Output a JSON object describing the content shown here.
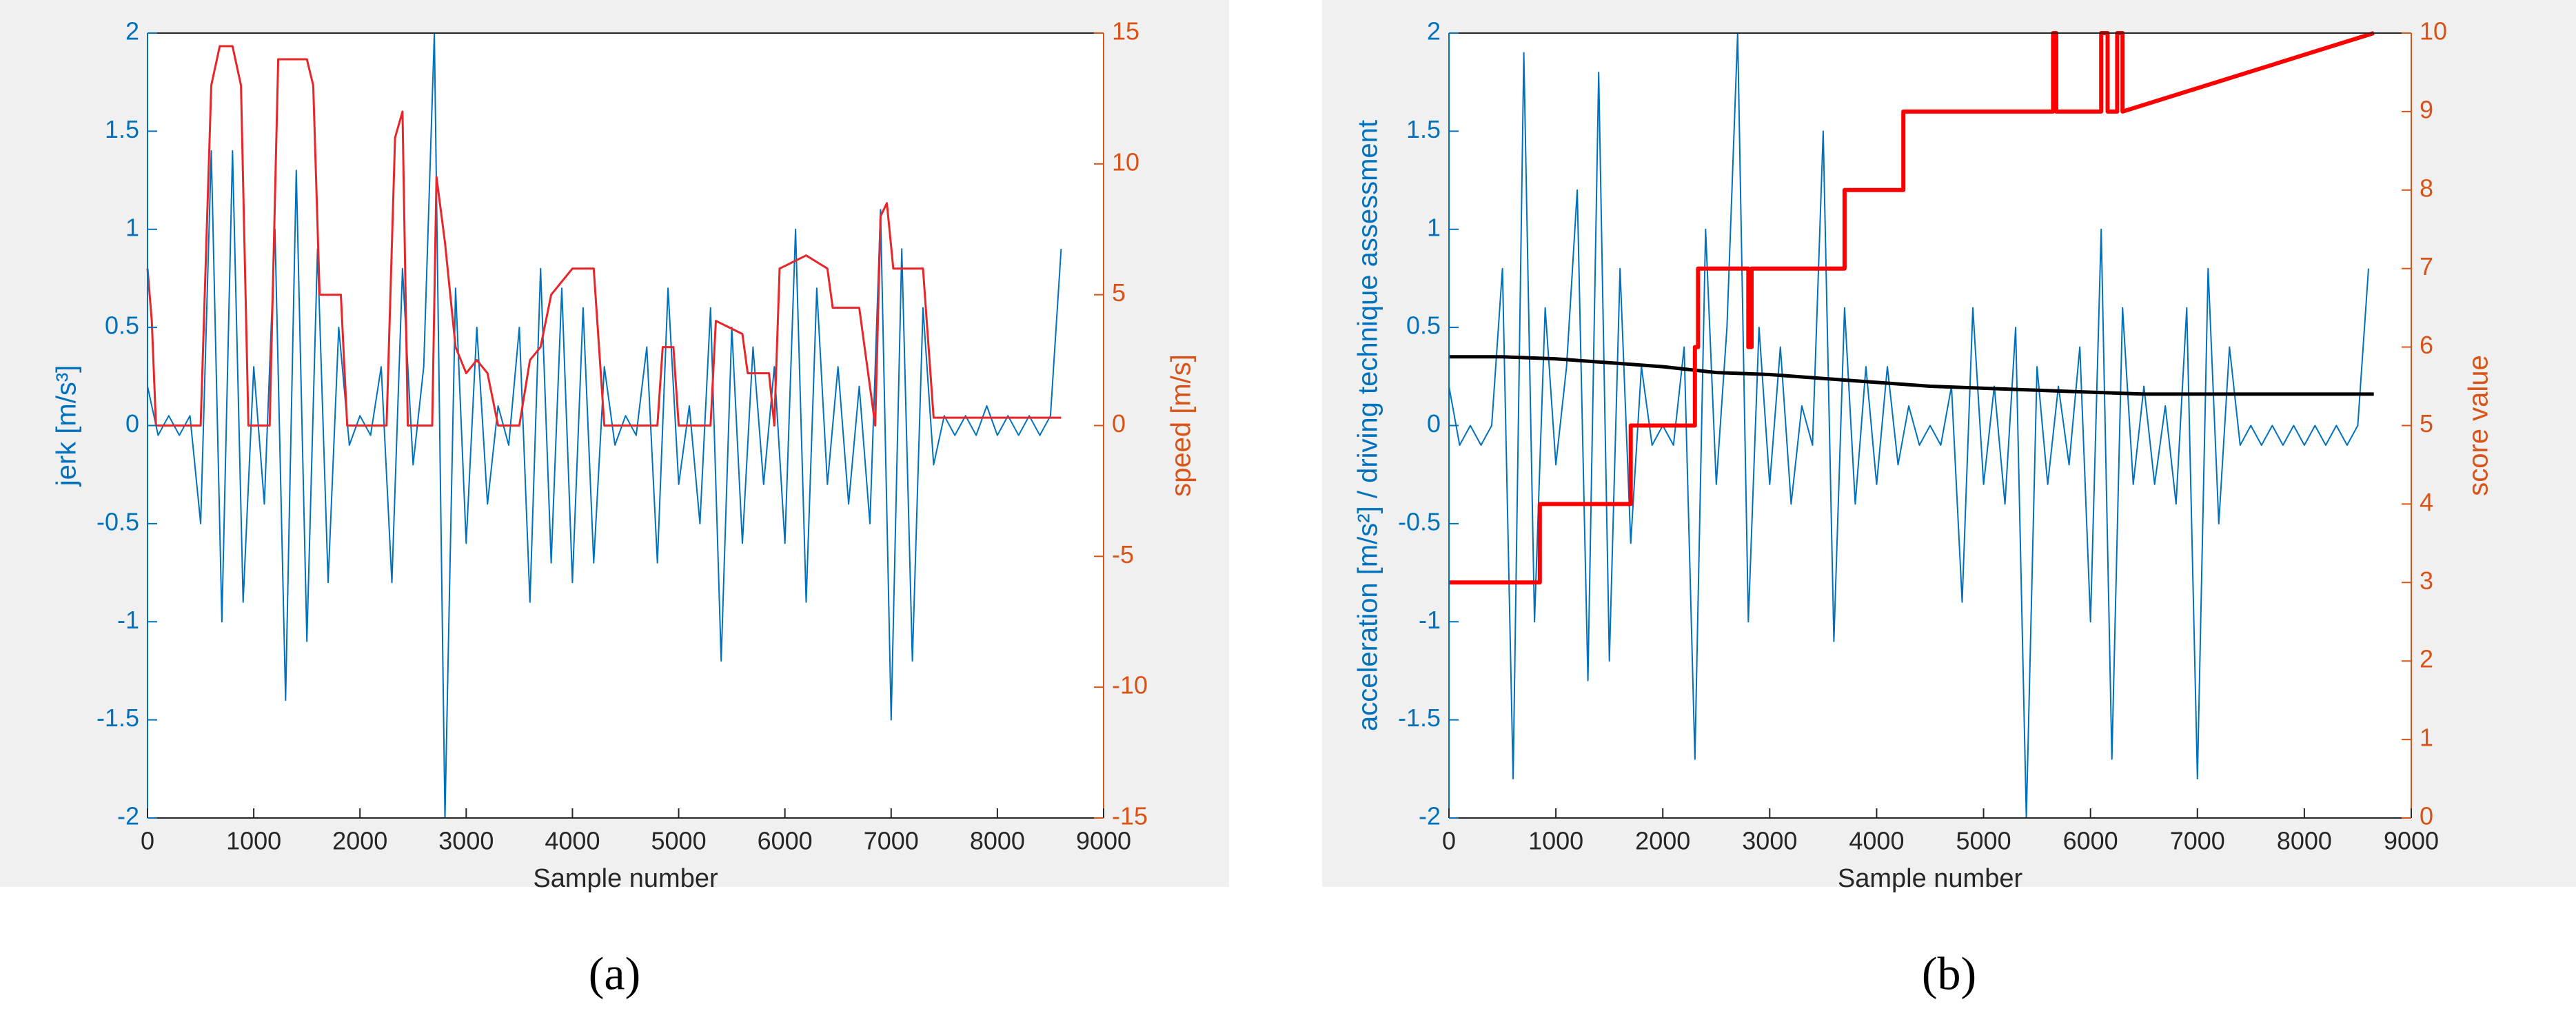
{
  "chart_data": [
    {
      "type": "line",
      "caption": "(a)",
      "xlabel": "Sample number",
      "ylabel": "jerk [m/s³]",
      "y2label": "speed [m/s]",
      "xlim": [
        0,
        9000
      ],
      "xticks": [
        0,
        1000,
        2000,
        3000,
        4000,
        5000,
        6000,
        7000,
        8000,
        9000
      ],
      "ylim": [
        -2,
        2
      ],
      "yticks": [
        -2,
        -1.5,
        -1,
        -0.5,
        0,
        0.5,
        1,
        1.5,
        2
      ],
      "y2lim": [
        -15,
        15
      ],
      "y2ticks": [
        -15,
        -10,
        -5,
        0,
        5,
        10,
        15
      ],
      "series": [
        {
          "color": "#0072bd",
          "width": 2,
          "x": [
            0,
            100,
            200,
            300,
            400,
            500,
            600,
            700,
            800,
            900,
            1000,
            1100,
            1200,
            1300,
            1400,
            1500,
            1600,
            1700,
            1800,
            1900,
            2000,
            2100,
            2200,
            2300,
            2400,
            2500,
            2600,
            2700,
            2800,
            2900,
            3000,
            3100,
            3200,
            3300,
            3400,
            3500,
            3600,
            3700,
            3800,
            3900,
            4000,
            4100,
            4200,
            4300,
            4400,
            4500,
            4600,
            4700,
            4800,
            4900,
            5000,
            5100,
            5200,
            5300,
            5400,
            5500,
            5600,
            5700,
            5800,
            5900,
            6000,
            6100,
            6200,
            6300,
            6400,
            6500,
            6600,
            6700,
            6800,
            6900,
            7000,
            7100,
            7200,
            7300,
            7400,
            7500,
            7600,
            7700,
            7800,
            7900,
            8000,
            8100,
            8200,
            8300,
            8400,
            8500,
            8600
          ],
          "values": [
            0.2,
            -0.05,
            0.05,
            -0.05,
            0.05,
            -0.5,
            1.4,
            -1.0,
            1.4,
            -0.9,
            0.3,
            -0.4,
            1.0,
            -1.4,
            1.3,
            -1.1,
            0.9,
            -0.8,
            0.5,
            -0.1,
            0.05,
            -0.05,
            0.3,
            -0.8,
            0.8,
            -0.2,
            0.3,
            2.0,
            -2.0,
            0.7,
            -0.6,
            0.5,
            -0.4,
            0.1,
            -0.1,
            0.5,
            -0.9,
            0.8,
            -0.7,
            0.7,
            -0.8,
            0.6,
            -0.7,
            0.3,
            -0.1,
            0.05,
            -0.05,
            0.4,
            -0.7,
            0.7,
            -0.3,
            0.1,
            -0.5,
            0.6,
            -1.2,
            0.5,
            -0.6,
            0.4,
            -0.3,
            0.3,
            -0.6,
            1.0,
            -0.9,
            0.7,
            -0.3,
            0.3,
            -0.4,
            0.2,
            -0.5,
            1.1,
            -1.5,
            0.9,
            -1.2,
            0.6,
            -0.2,
            0.05,
            -0.05,
            0.05,
            -0.05,
            0.1,
            -0.05,
            0.05,
            -0.05,
            0.05,
            -0.05,
            0.05,
            0.9
          ]
        },
        {
          "color": "#e8262a",
          "width": 3,
          "axis": "y2",
          "x": [
            0,
            40,
            80,
            500,
            600,
            680,
            800,
            880,
            950,
            1150,
            1230,
            1500,
            1560,
            1620,
            1820,
            1880,
            2250,
            2330,
            2400,
            2450,
            2680,
            2720,
            2800,
            2900,
            3000,
            3100,
            3200,
            3300,
            3500,
            3600,
            3700,
            3800,
            4000,
            4200,
            4300,
            4800,
            4850,
            4950,
            5000,
            5300,
            5350,
            5600,
            5650,
            5850,
            5900,
            5950,
            6200,
            6400,
            6450,
            6700,
            6850,
            6900,
            6960,
            7020,
            7050,
            7300,
            7400,
            8600
          ],
          "values": [
            6,
            4,
            0,
            0,
            13,
            14.5,
            14.5,
            13,
            0,
            0,
            14,
            14,
            13,
            5,
            5,
            0,
            0,
            11,
            12,
            0,
            0,
            9.5,
            7,
            3,
            2,
            2.5,
            2,
            0,
            0,
            2.5,
            3,
            5,
            6,
            6,
            0,
            0,
            3,
            3,
            0,
            0,
            4,
            3.5,
            2,
            2,
            0,
            6,
            6.5,
            6,
            4.5,
            4.5,
            0,
            8,
            8.5,
            6,
            6,
            6,
            0.3,
            0.3
          ]
        }
      ]
    },
    {
      "type": "line",
      "caption": "(b)",
      "xlabel": "Sample number",
      "ylabel": "acceleration [m/s²] / driving technique assessment",
      "y2label": "score value",
      "xlim": [
        0,
        9000
      ],
      "xticks": [
        0,
        1000,
        2000,
        3000,
        4000,
        5000,
        6000,
        7000,
        8000,
        9000
      ],
      "ylim": [
        -2,
        2
      ],
      "yticks": [
        -2,
        -1.5,
        -1,
        -0.5,
        0,
        0.5,
        1,
        1.5,
        2
      ],
      "y2lim": [
        0,
        10
      ],
      "y2ticks": [
        0,
        1,
        2,
        3,
        4,
        5,
        6,
        7,
        8,
        9,
        10
      ],
      "series": [
        {
          "color": "#0072bd",
          "width": 2,
          "x": [
            0,
            100,
            200,
            300,
            400,
            500,
            600,
            700,
            800,
            900,
            1000,
            1100,
            1200,
            1300,
            1400,
            1500,
            1600,
            1700,
            1800,
            1900,
            2000,
            2100,
            2200,
            2300,
            2400,
            2500,
            2600,
            2700,
            2800,
            2900,
            3000,
            3100,
            3200,
            3300,
            3400,
            3500,
            3600,
            3700,
            3800,
            3900,
            4000,
            4100,
            4200,
            4300,
            4400,
            4500,
            4600,
            4700,
            4800,
            4900,
            5000,
            5100,
            5200,
            5300,
            5400,
            5500,
            5600,
            5700,
            5800,
            5900,
            6000,
            6100,
            6200,
            6300,
            6400,
            6500,
            6600,
            6700,
            6800,
            6900,
            7000,
            7100,
            7200,
            7300,
            7400,
            7500,
            7600,
            7700,
            7800,
            7900,
            8000,
            8100,
            8200,
            8300,
            8400,
            8500,
            8600
          ],
          "values": [
            0.2,
            -0.1,
            0,
            -0.1,
            0,
            0.8,
            -1.8,
            1.9,
            -1.0,
            0.6,
            -0.2,
            0.3,
            1.2,
            -1.3,
            1.8,
            -1.2,
            0.8,
            -0.6,
            0.3,
            -0.1,
            0,
            -0.1,
            0.4,
            -1.7,
            1.0,
            -0.3,
            0.5,
            2.0,
            -1.0,
            0.5,
            -0.3,
            0.4,
            -0.4,
            0.1,
            -0.1,
            1.5,
            -1.1,
            0.6,
            -0.4,
            0.3,
            -0.3,
            0.3,
            -0.2,
            0.1,
            -0.1,
            0,
            -0.1,
            0.2,
            -0.9,
            0.6,
            -0.3,
            0.2,
            -0.4,
            0.5,
            -2.0,
            0.3,
            -0.3,
            0.2,
            -0.2,
            0.4,
            -1.0,
            1.0,
            -1.7,
            0.6,
            -0.3,
            0.2,
            -0.3,
            0.1,
            -0.4,
            0.6,
            -1.8,
            0.8,
            -0.5,
            0.4,
            -0.1,
            0,
            -0.1,
            0,
            -0.1,
            0,
            -0.1,
            0,
            -0.1,
            0,
            -0.1,
            0,
            0.8
          ]
        },
        {
          "color": "#000000",
          "width": 5,
          "x": [
            0,
            500,
            1000,
            1500,
            2000,
            2500,
            3000,
            3500,
            4000,
            4500,
            5000,
            5500,
            6000,
            6500,
            7000,
            7500,
            8000,
            8650
          ],
          "values": [
            0.35,
            0.35,
            0.34,
            0.32,
            0.3,
            0.27,
            0.26,
            0.24,
            0.22,
            0.2,
            0.19,
            0.18,
            0.17,
            0.16,
            0.16,
            0.16,
            0.16,
            0.16
          ]
        },
        {
          "color": "#ff0000",
          "width": 6,
          "axis": "y2",
          "x": [
            0,
            850,
            850,
            1700,
            1700,
            2300,
            2300,
            2330,
            2330,
            2800,
            2800,
            2830,
            2830,
            3700,
            3700,
            4250,
            4250,
            5650,
            5650,
            5680,
            5680,
            6100,
            6100,
            6160,
            6160,
            6250,
            6250,
            6300,
            6300,
            8650
          ],
          "values": [
            3,
            3,
            4,
            4,
            5,
            5,
            6,
            6,
            7,
            7,
            6,
            6,
            7,
            7,
            8,
            8,
            9,
            9,
            10,
            10,
            9,
            9,
            10,
            10,
            9,
            9,
            10,
            10,
            9,
            10
          ]
        }
      ]
    }
  ]
}
